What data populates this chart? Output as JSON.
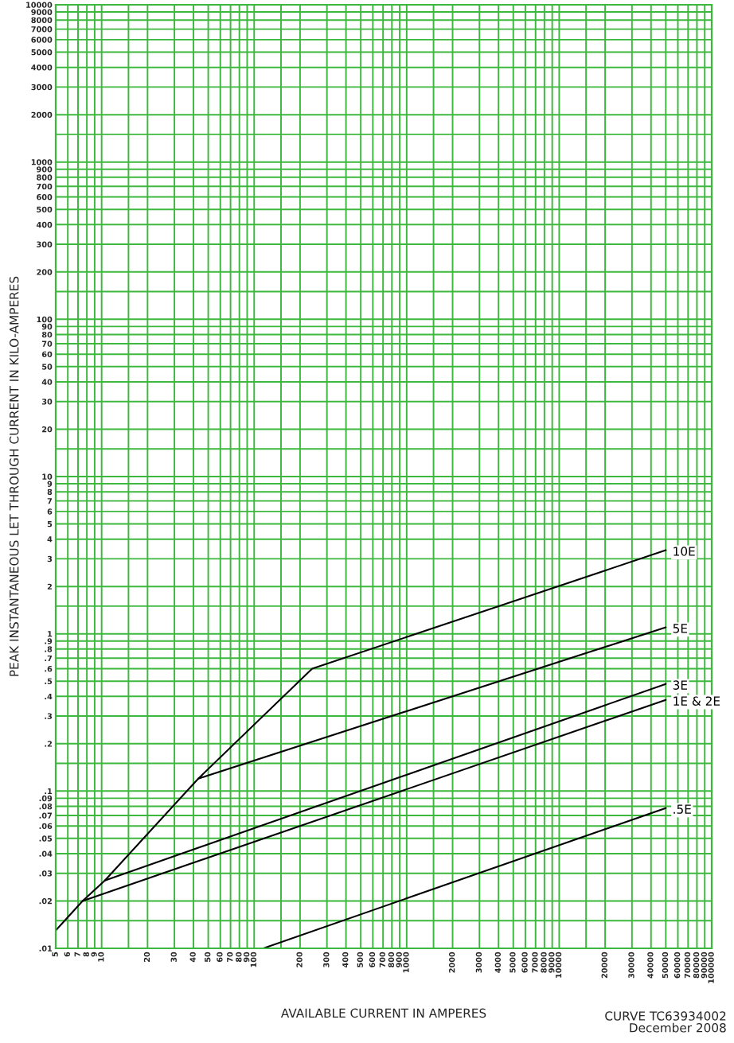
{
  "chart_data": {
    "type": "line",
    "xlabel": "AVAILABLE CURRENT IN AMPERES",
    "ylabel": "PEAK INSTANTANEOUS LET THROUGH CURRENT IN KILO-AMPERES",
    "annotations": [
      "CURVE TC63934002\nDecember 2008"
    ],
    "log": "xy",
    "grid": true,
    "legend": false,
    "marker": "none",
    "line_style": "solid",
    "xlim": [
      5,
      100000
    ],
    "ylim": [
      0.01,
      10000
    ],
    "xticks": [
      5,
      6,
      7,
      8,
      9,
      10,
      {
        "value": 15,
        "label": null
      },
      20,
      30,
      40,
      50,
      60,
      70,
      80,
      90,
      100,
      {
        "value": 150,
        "label": null
      },
      200,
      300,
      400,
      500,
      600,
      700,
      800,
      900,
      1000,
      {
        "value": 1500,
        "label": null
      },
      2000,
      3000,
      4000,
      5000,
      6000,
      7000,
      8000,
      9000,
      10000,
      {
        "value": 15000,
        "label": null
      },
      20000,
      30000,
      40000,
      50000,
      60000,
      70000,
      80000,
      90000,
      100000
    ],
    "yticks": [
      {
        "value": 0.01,
        "label": ".01"
      },
      {
        "value": 0.015,
        "label": null
      },
      {
        "value": 0.02,
        "label": ".02"
      },
      {
        "value": 0.03,
        "label": ".03"
      },
      {
        "value": 0.04,
        "label": ".04"
      },
      {
        "value": 0.05,
        "label": ".05"
      },
      {
        "value": 0.06,
        "label": ".06"
      },
      {
        "value": 0.07,
        "label": ".07"
      },
      {
        "value": 0.08,
        "label": ".08"
      },
      {
        "value": 0.09,
        "label": ".09"
      },
      {
        "value": 0.1,
        "label": ".1"
      },
      {
        "value": 0.15,
        "label": null
      },
      {
        "value": 0.2,
        "label": ".2"
      },
      {
        "value": 0.3,
        "label": ".3"
      },
      {
        "value": 0.4,
        "label": ".4"
      },
      {
        "value": 0.5,
        "label": ".5"
      },
      {
        "value": 0.6,
        "label": ".6"
      },
      {
        "value": 0.7,
        "label": ".7"
      },
      {
        "value": 0.8,
        "label": ".8"
      },
      {
        "value": 0.9,
        "label": ".9"
      },
      1,
      {
        "value": 1.5,
        "label": null
      },
      2,
      3,
      4,
      5,
      6,
      7,
      8,
      9,
      10,
      {
        "value": 15,
        "label": null
      },
      20,
      30,
      40,
      50,
      60,
      70,
      80,
      90,
      100,
      {
        "value": 150,
        "label": null
      },
      200,
      300,
      400,
      500,
      600,
      700,
      800,
      900,
      1000,
      {
        "value": 1500,
        "label": null
      },
      2000,
      3000,
      4000,
      5000,
      6000,
      7000,
      8000,
      9000,
      10000
    ],
    "series": [
      {
        "name": "10E",
        "color": "#000000",
        "x": [
          5,
          7.5,
          10.5,
          43,
          240,
          50000
        ],
        "values": [
          0.013,
          0.02,
          0.027,
          0.12,
          0.6,
          3.4
        ]
      },
      {
        "name": "5E",
        "color": "#000000",
        "x": [
          43,
          50000
        ],
        "values": [
          0.12,
          1.1
        ]
      },
      {
        "name": "3E",
        "color": "#000000",
        "x": [
          10.5,
          50000
        ],
        "values": [
          0.027,
          0.48
        ]
      },
      {
        "name": "1E & 2E",
        "color": "#000000",
        "x": [
          7.5,
          50000
        ],
        "values": [
          0.02,
          0.38
        ]
      },
      {
        "name": ".5E",
        "color": "#000000",
        "x": [
          115,
          50000
        ],
        "values": [
          0.01,
          0.078
        ]
      }
    ]
  }
}
